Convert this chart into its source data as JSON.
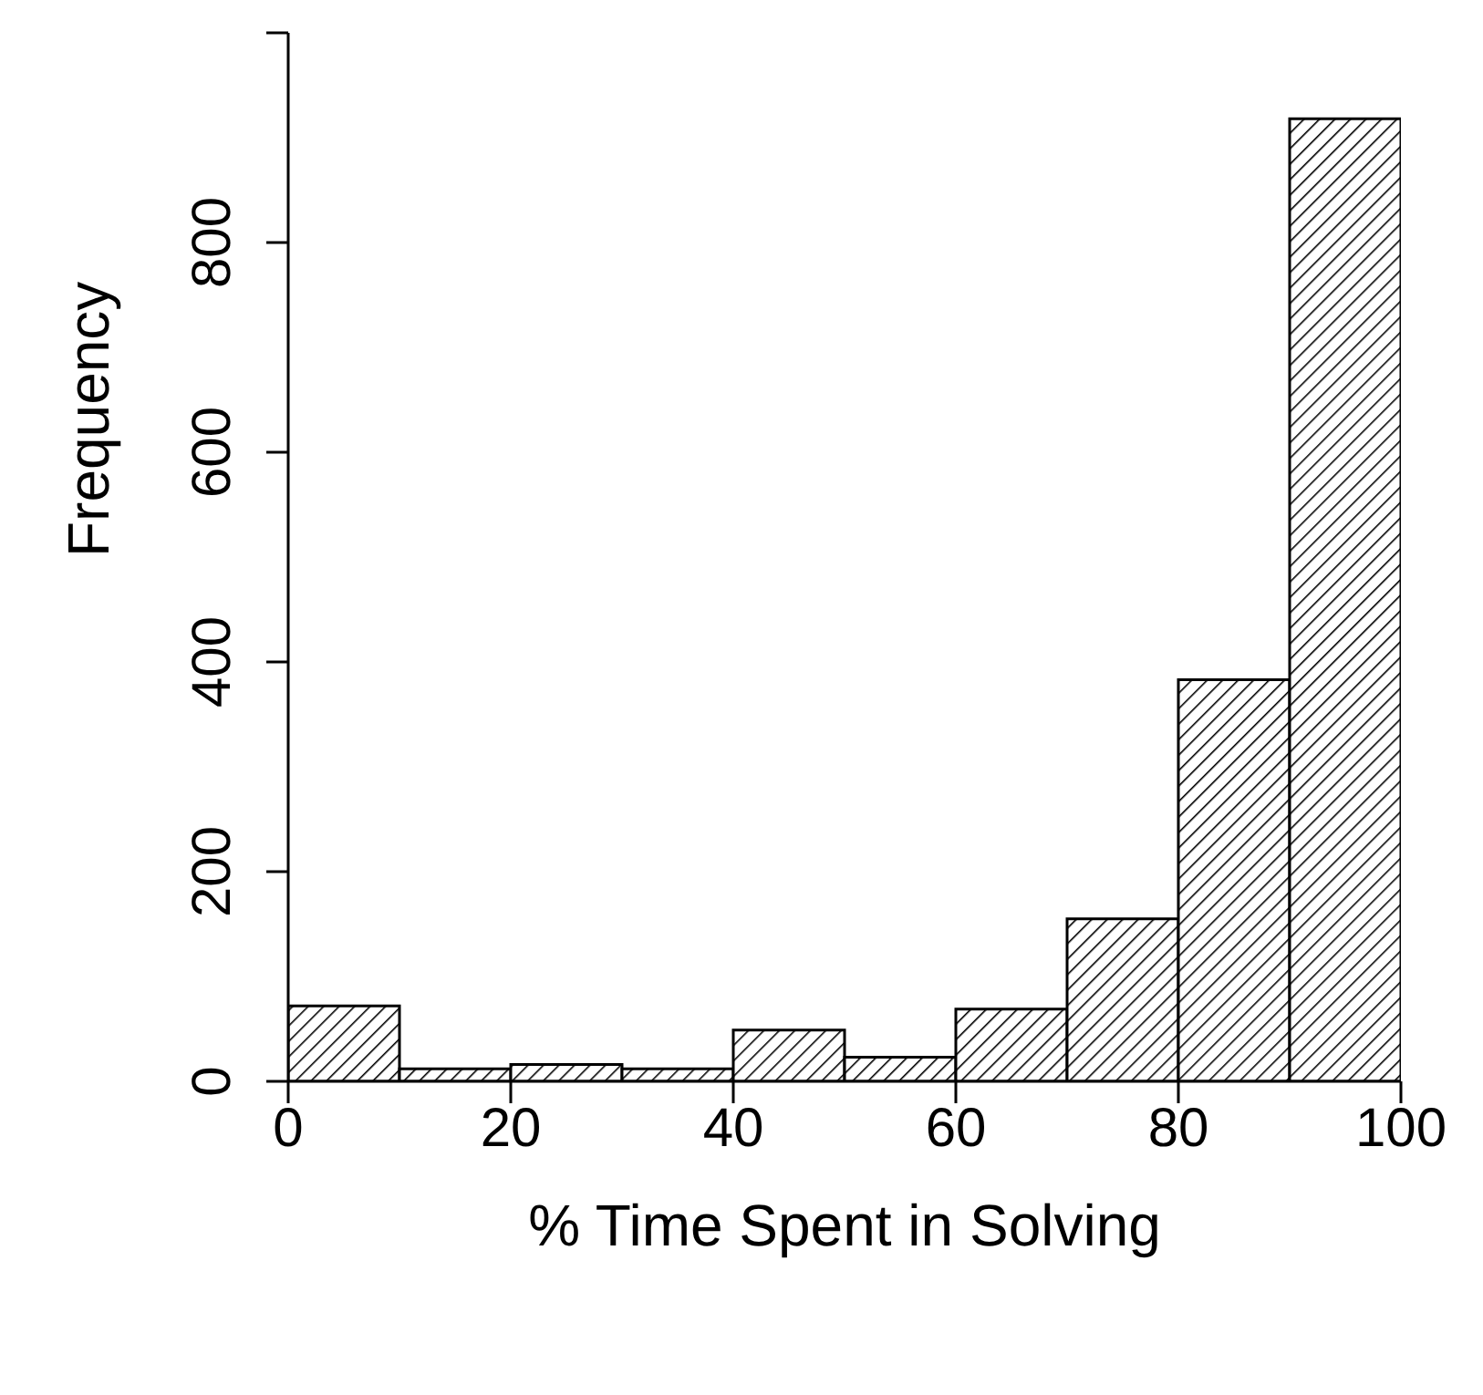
{
  "chart_data": {
    "type": "histogram",
    "xlabel": "% Time Spent in Solving",
    "ylabel": "Frequency",
    "bins": [
      0,
      10,
      20,
      30,
      40,
      50,
      60,
      70,
      80,
      90,
      100
    ],
    "values": [
      72,
      12,
      16,
      12,
      49,
      23,
      69,
      155,
      383,
      918
    ],
    "color": "#000000",
    "xlim": [
      0,
      100
    ],
    "xticks": [
      0,
      20,
      40,
      60,
      80,
      100
    ],
    "ylim": [
      0,
      1000
    ],
    "yticks": [
      0,
      200,
      400,
      600,
      800,
      {
        "value": 1000,
        "label": null
      }
    ],
    "grid": false
  }
}
